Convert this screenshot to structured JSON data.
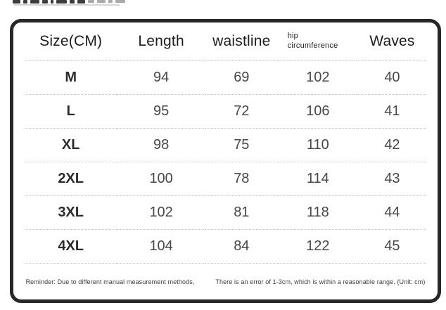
{
  "colors": {
    "panel_border": "#272727",
    "divider": "#c6c6c6",
    "header_text": "#1d1d1d",
    "value_text": "#46464c",
    "background": "#ffffff"
  },
  "table": {
    "header": {
      "size_label": "Size(CM)",
      "length_label": "Length",
      "waistline_label": "waistline",
      "hip_line1": "hip",
      "hip_line2": "circumference",
      "waves_label": "Waves"
    },
    "rows": [
      {
        "size": "M",
        "length": "94",
        "waistline": "69",
        "hip": "102",
        "waves": "40"
      },
      {
        "size": "L",
        "length": "95",
        "waistline": "72",
        "hip": "106",
        "waves": "41"
      },
      {
        "size": "XL",
        "length": "98",
        "waistline": "75",
        "hip": "110",
        "waves": "42"
      },
      {
        "size": "2XL",
        "length": "100",
        "waistline": "78",
        "hip": "114",
        "waves": "43"
      },
      {
        "size": "3XL",
        "length": "102",
        "waistline": "81",
        "hip": "118",
        "waves": "44"
      },
      {
        "size": "4XL",
        "length": "104",
        "waistline": "84",
        "hip": "122",
        "waves": "45"
      }
    ],
    "footer": {
      "part1": "Reminder: Due to different manual measurement methods,",
      "part2": "There is an error of 1-3cm, which is within a reasonable range. (Unit: cm)"
    }
  }
}
